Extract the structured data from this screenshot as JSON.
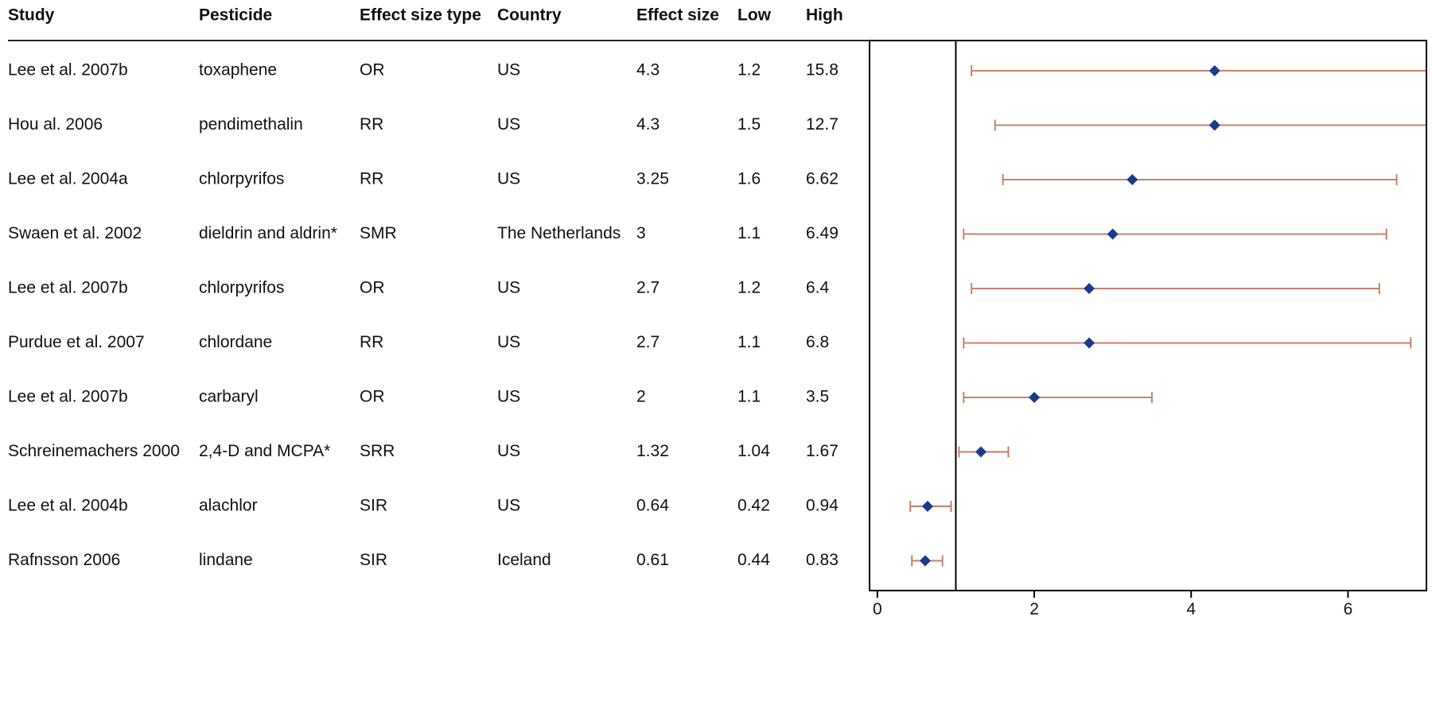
{
  "chart_data": {
    "type": "forest",
    "headers": {
      "study": "Study",
      "pesticide": "Pesticide",
      "type": "Effect size type",
      "country": "Country",
      "effect": "Effect size",
      "low": "Low",
      "high": "High"
    },
    "rows": [
      {
        "study": "Lee et al. 2007b",
        "pesticide": "toxaphene",
        "type": "OR",
        "country": "US",
        "effect_label": "4.3",
        "low_label": "1.2",
        "high_label": "15.8",
        "effect": 4.3,
        "low": 1.2,
        "high": 15.8
      },
      {
        "study": "Hou al. 2006",
        "pesticide": "pendimethalin",
        "type": "RR",
        "country": "US",
        "effect_label": "4.3",
        "low_label": "1.5",
        "high_label": "12.7",
        "effect": 4.3,
        "low": 1.5,
        "high": 12.7
      },
      {
        "study": "Lee et al. 2004a",
        "pesticide": "chlorpyrifos",
        "type": "RR",
        "country": "US",
        "effect_label": "3.25",
        "low_label": "1.6",
        "high_label": "6.62",
        "effect": 3.25,
        "low": 1.6,
        "high": 6.62
      },
      {
        "study": "Swaen et al. 2002",
        "pesticide": "dieldrin and aldrin*",
        "type": "SMR",
        "country": "The Netherlands",
        "effect_label": "3",
        "low_label": "1.1",
        "high_label": "6.49",
        "effect": 3,
        "low": 1.1,
        "high": 6.49
      },
      {
        "study": "Lee et al. 2007b",
        "pesticide": "chlorpyrifos",
        "type": "OR",
        "country": "US",
        "effect_label": "2.7",
        "low_label": "1.2",
        "high_label": "6.4",
        "effect": 2.7,
        "low": 1.2,
        "high": 6.4
      },
      {
        "study": "Purdue et al. 2007",
        "pesticide": "chlordane",
        "type": "RR",
        "country": "US",
        "effect_label": "2.7",
        "low_label": "1.1",
        "high_label": "6.8",
        "effect": 2.7,
        "low": 1.1,
        "high": 6.8
      },
      {
        "study": "Lee et al. 2007b",
        "pesticide": "carbaryl",
        "type": "OR",
        "country": "US",
        "effect_label": "2",
        "low_label": "1.1",
        "high_label": "3.5",
        "effect": 2,
        "low": 1.1,
        "high": 3.5
      },
      {
        "study": "Schreinemachers 2000",
        "pesticide": "2,4-D and MCPA*",
        "type": "SRR",
        "country": "US",
        "effect_label": "1.32",
        "low_label": "1.04",
        "high_label": "1.67",
        "effect": 1.32,
        "low": 1.04,
        "high": 1.67
      },
      {
        "study": "Lee et al. 2004b",
        "pesticide": "alachlor",
        "type": "SIR",
        "country": "US",
        "effect_label": "0.64",
        "low_label": "0.42",
        "high_label": "0.94",
        "effect": 0.64,
        "low": 0.42,
        "high": 0.94
      },
      {
        "study": "Rafnsson 2006",
        "pesticide": "lindane",
        "type": "SIR",
        "country": "Iceland",
        "effect_label": "0.61",
        "low_label": "0.44",
        "high_label": "0.83",
        "effect": 0.61,
        "low": 0.44,
        "high": 0.83
      }
    ],
    "x_ticks": [
      0,
      2,
      4,
      6
    ],
    "xlim": [
      -0.1,
      7.0
    ],
    "reference_line": 1,
    "colors": {
      "point": "#1a3a8f",
      "ci": "#c8826a",
      "text": "#111111",
      "axis": "#000000"
    }
  }
}
